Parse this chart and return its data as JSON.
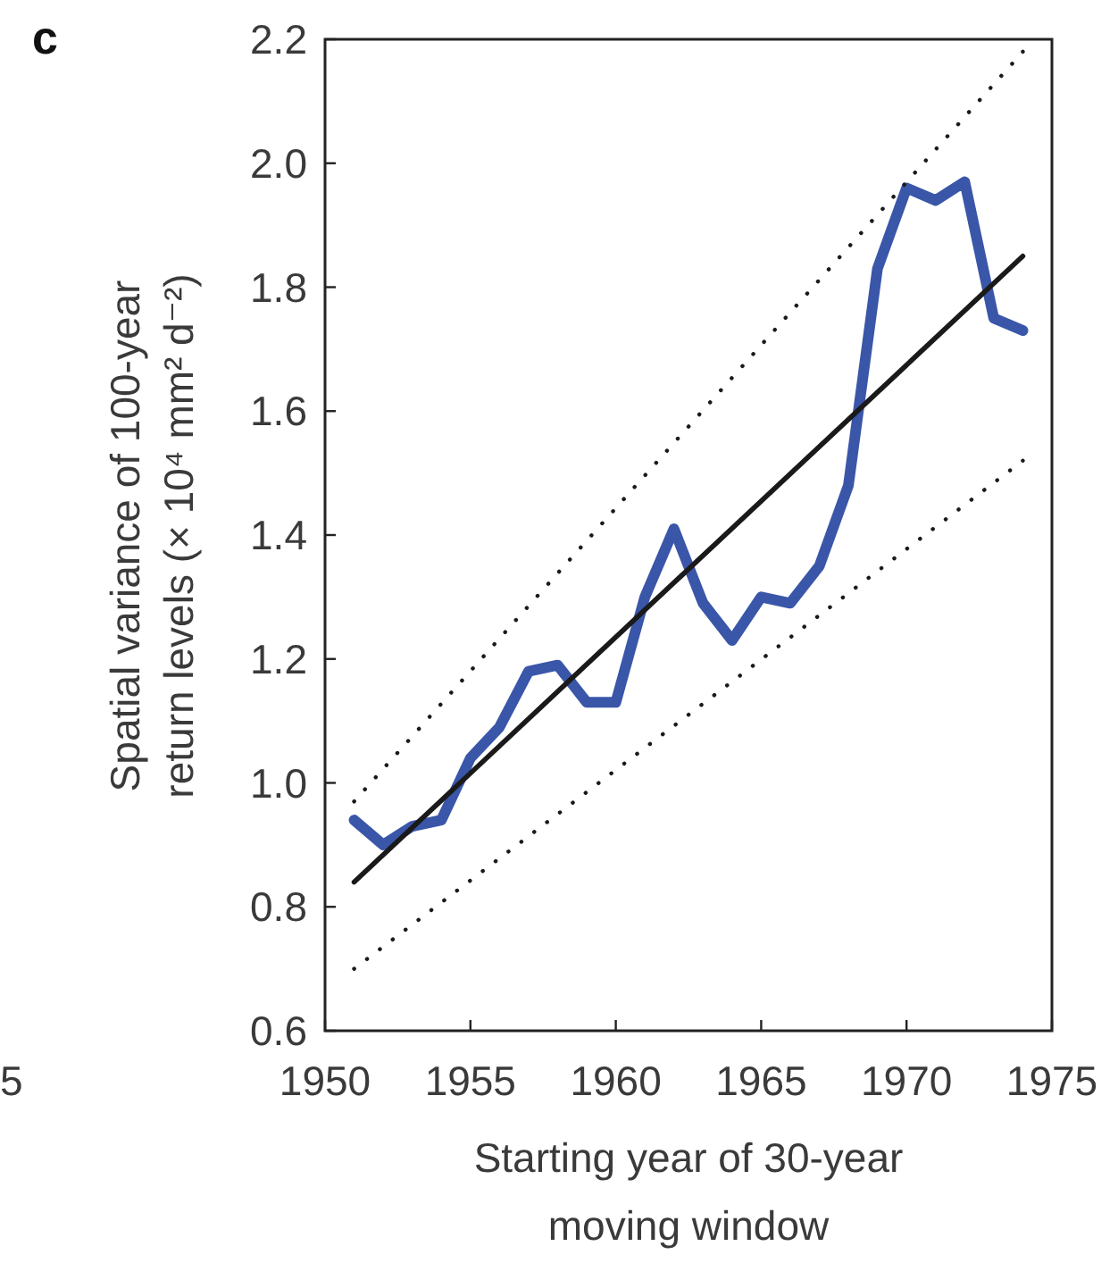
{
  "chart_data": {
    "type": "line",
    "title": "c",
    "xlabel": "Starting year of 30-year\nmoving window",
    "ylabel": "Spatial variance of 100-year\nreturn levels  (× 10⁴ mm² d⁻²)",
    "annotations": [
      "5"
    ],
    "xlim": [
      1950,
      1975
    ],
    "xticks": [
      1950,
      1955,
      1960,
      1965,
      1970,
      1975
    ],
    "ylim": [
      0.6,
      2.2
    ],
    "yticks": [
      0.6,
      0.8,
      {
        "value": 1,
        "label": "1.0"
      },
      1.2,
      1.4,
      1.6,
      1.8,
      {
        "value": 2,
        "label": "2.0"
      },
      2.2
    ],
    "grid": false,
    "marker": "none",
    "series": [
      {
        "color": "#3a56a8",
        "line_style": "solid",
        "x": [
          1951,
          1952,
          1953,
          1954,
          1955,
          1956,
          1957,
          1958,
          1959,
          1960,
          1961,
          1962,
          1963,
          1964,
          1965,
          1966,
          1967,
          1968,
          1969,
          1970,
          1971,
          1972,
          1973,
          1974
        ],
        "values": [
          0.94,
          0.9,
          0.93,
          0.94,
          1.04,
          1.09,
          1.18,
          1.19,
          1.13,
          1.13,
          1.3,
          1.41,
          1.29,
          1.23,
          1.3,
          1.29,
          1.35,
          1.48,
          1.83,
          1.96,
          1.94,
          1.97,
          1.75,
          1.73
        ]
      },
      {
        "color": "#1a1a1a",
        "line_style": "solid",
        "x": [
          1951,
          1974
        ],
        "values": [
          0.84,
          1.85
        ]
      },
      {
        "color": "#1a1a1a",
        "line_style": "dotted",
        "x": [
          1951,
          1974
        ],
        "values": [
          0.97,
          2.18
        ]
      },
      {
        "color": "#1a1a1a",
        "line_style": "dotted",
        "x": [
          1951,
          1974
        ],
        "values": [
          0.7,
          1.52
        ]
      }
    ]
  }
}
